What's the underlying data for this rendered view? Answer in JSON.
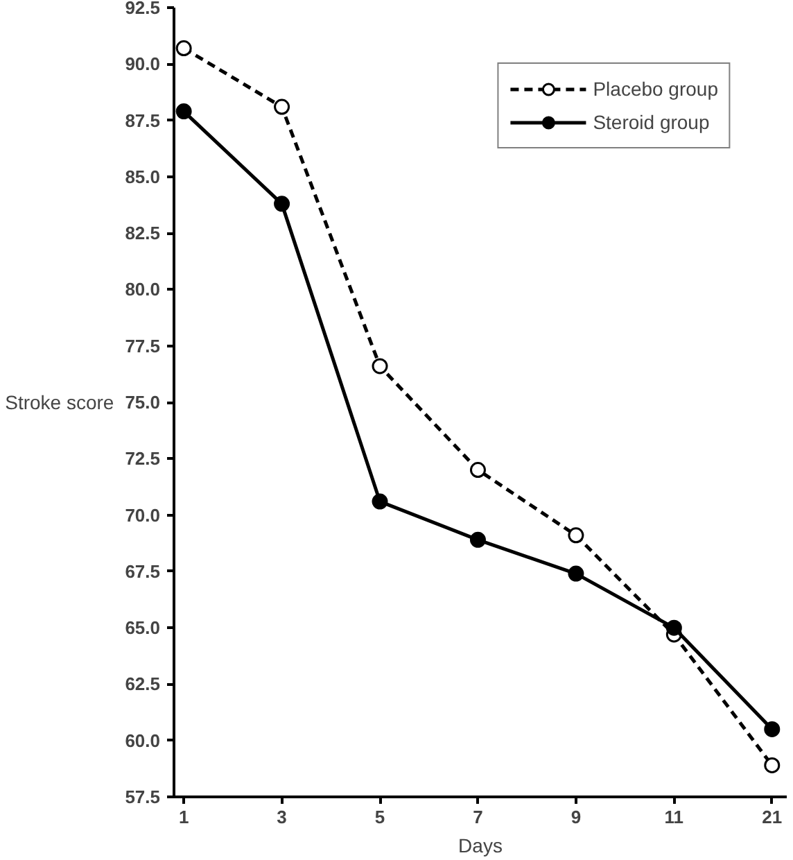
{
  "chart_data": {
    "type": "line",
    "xlabel": "Days",
    "ylabel": "Stroke score",
    "categories": [
      "1",
      "3",
      "5",
      "7",
      "9",
      "11",
      "21"
    ],
    "series": [
      {
        "name": "Placebo group",
        "color": "#000000",
        "line_style": "dashed",
        "marker": "circle",
        "values": [
          90.7,
          88.1,
          76.6,
          72.0,
          69.1,
          64.7,
          58.9
        ]
      },
      {
        "name": "Steroid group",
        "color": "#000000",
        "line_style": "solid",
        "marker": "circle",
        "values": [
          87.9,
          83.8,
          70.6,
          68.9,
          67.4,
          65.0,
          60.5
        ]
      }
    ],
    "ylim": [
      57.5,
      92.5
    ],
    "yticks": [
      57.5,
      {
        "value": 60,
        "label": "60.0"
      },
      62.5,
      {
        "value": 65,
        "label": "65.0"
      },
      67.5,
      {
        "value": 70,
        "label": "70.0"
      },
      72.5,
      {
        "value": 75,
        "label": "75.0"
      },
      77.5,
      {
        "value": 80,
        "label": "80.0"
      },
      82.5,
      {
        "value": 85,
        "label": "85.0"
      },
      87.5,
      {
        "value": 90,
        "label": "90.0"
      },
      92.5
    ],
    "grid": false,
    "legend": "top right"
  }
}
